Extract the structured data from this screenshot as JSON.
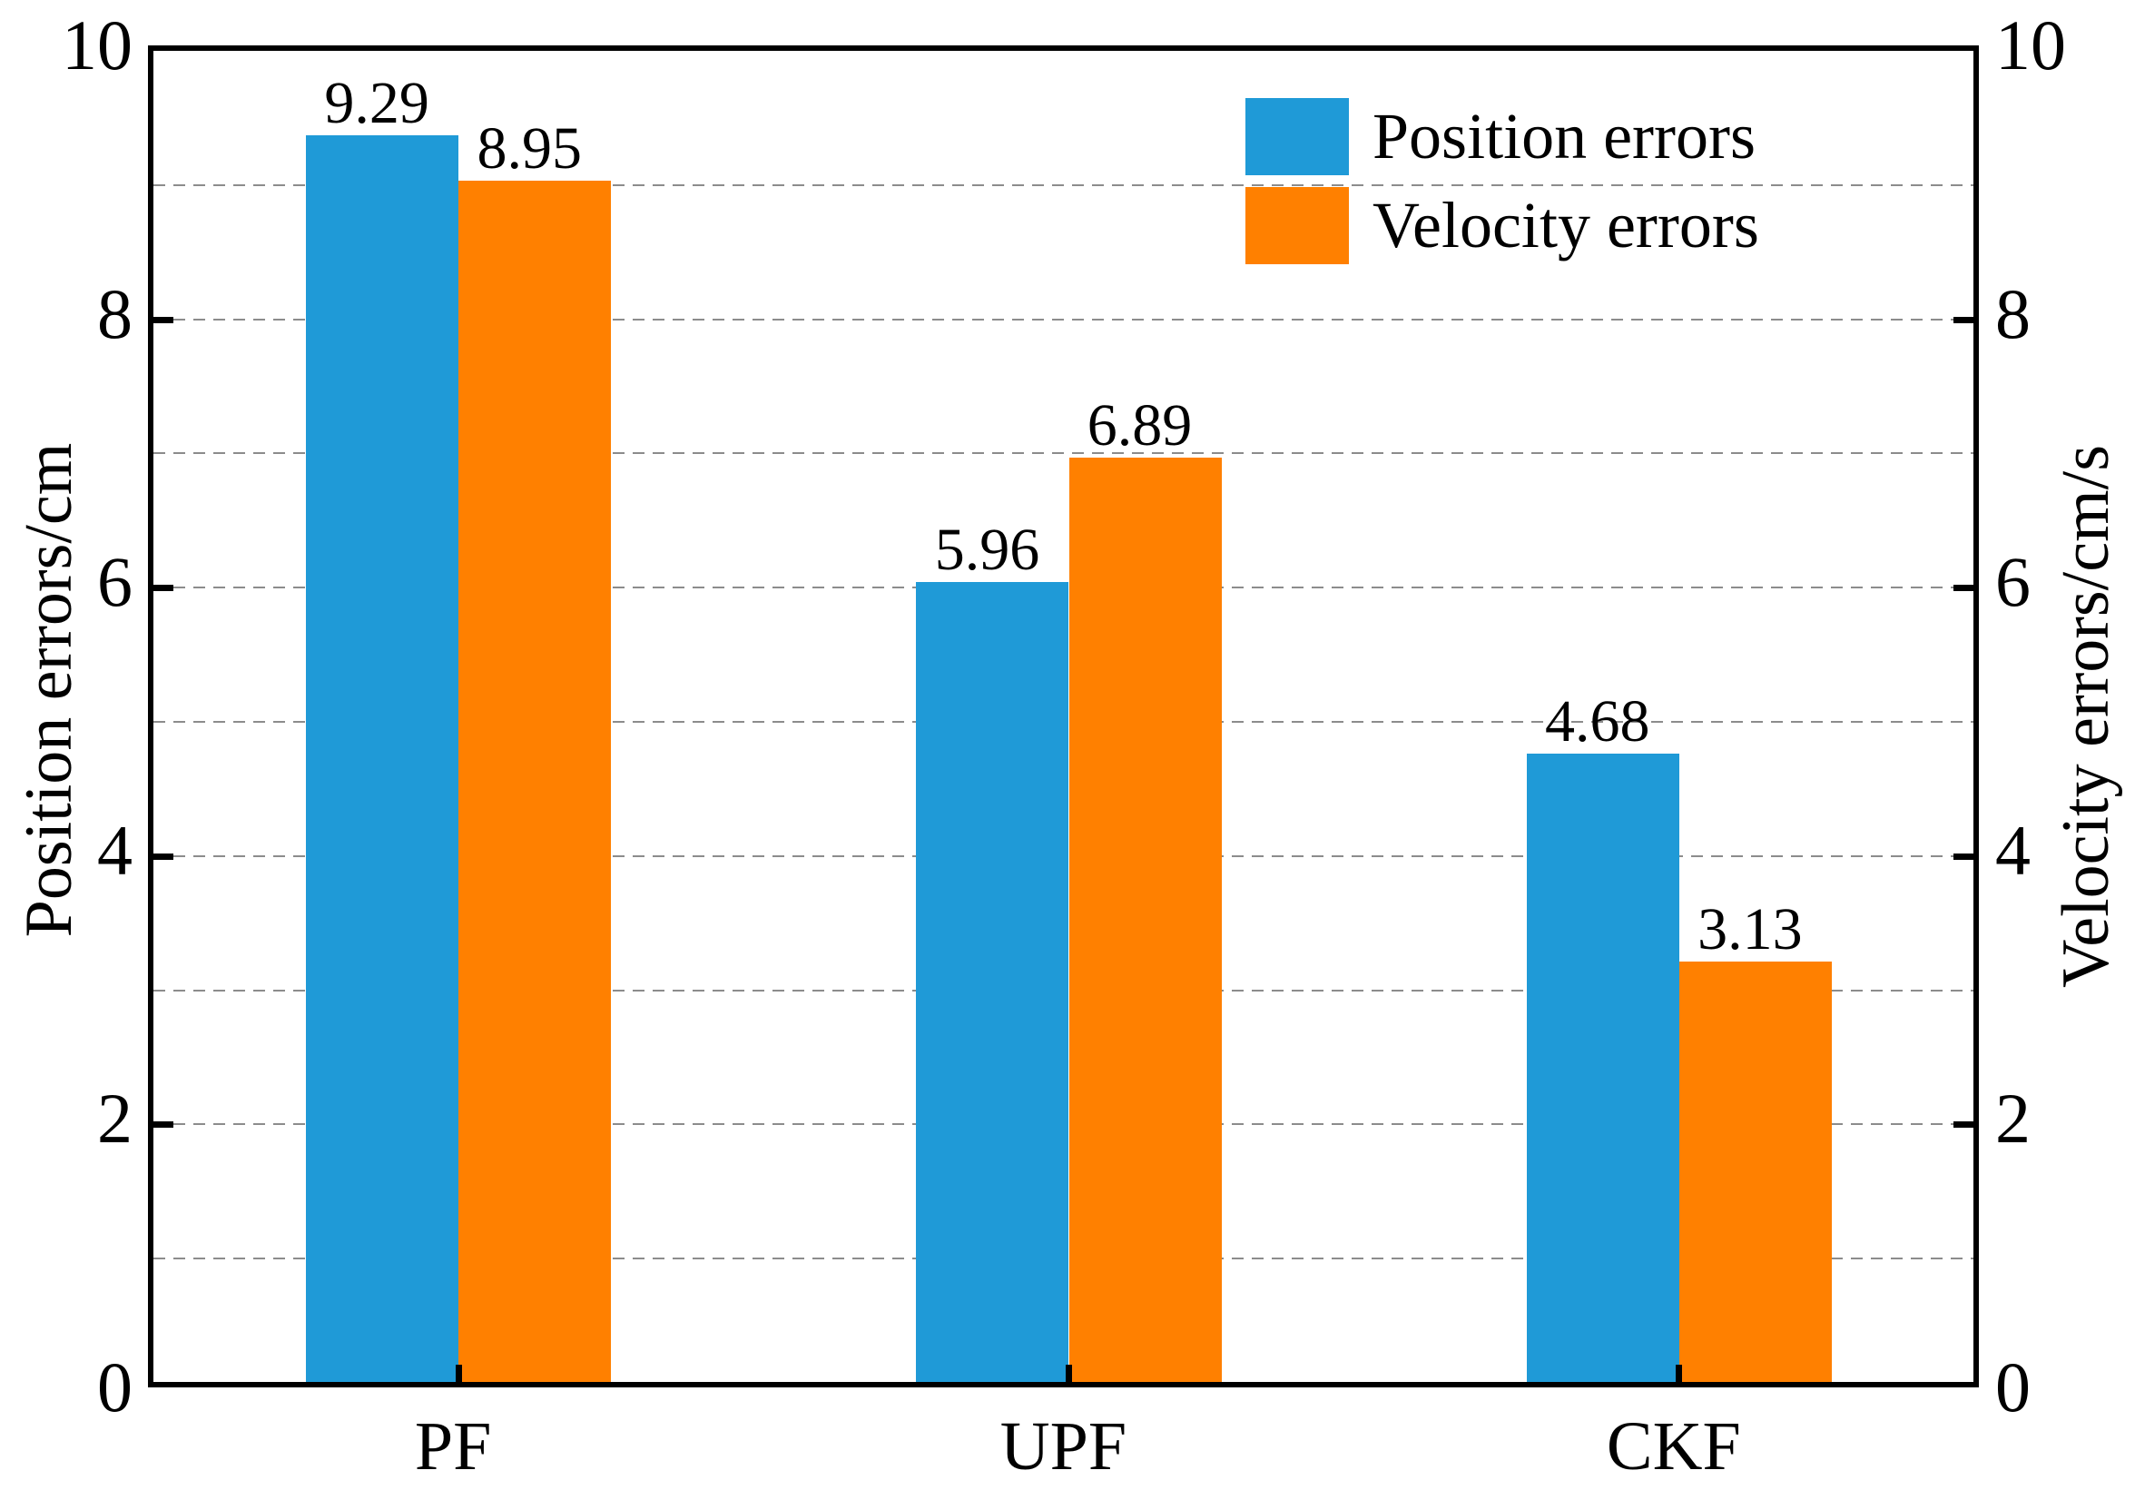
{
  "figure": {
    "background": "#ffffff",
    "frame_color": "#000000",
    "grid_color": "#8c8c8c",
    "text_color": "#000000"
  },
  "chart_data": {
    "type": "bar",
    "title": "",
    "categories": [
      "PF",
      "UPF",
      "CKF"
    ],
    "series": [
      {
        "name": "Position errors",
        "color": "#1F9AD7",
        "values": [
          9.29,
          5.96,
          4.68
        ],
        "value_labels": [
          "9.29",
          "5.96",
          "4.68"
        ],
        "axis": "left"
      },
      {
        "name": "Velocity errors",
        "color": "#FF8000",
        "values": [
          8.95,
          6.89,
          3.13
        ],
        "value_labels": [
          "8.95",
          "6.89",
          "3.13"
        ],
        "axis": "right"
      }
    ],
    "xlabel": "",
    "ylabel_left": "Position errors/cm",
    "ylabel_right": "Velocity errors/cm/s",
    "ylim": [
      0,
      10
    ],
    "ytick_values": [
      0,
      2,
      4,
      6,
      8,
      10
    ],
    "yticks_left": [
      "0",
      "2",
      "4",
      "6",
      "8",
      "10"
    ],
    "yticks_right": [
      "0",
      "2",
      "4",
      "6",
      "8",
      "10"
    ],
    "gridline_values": [
      1,
      2,
      3,
      4,
      5,
      6,
      7,
      8,
      9
    ],
    "grid_style": "dashed",
    "legend_position": "top-right",
    "bar_width_fraction_of_group": 0.25
  }
}
